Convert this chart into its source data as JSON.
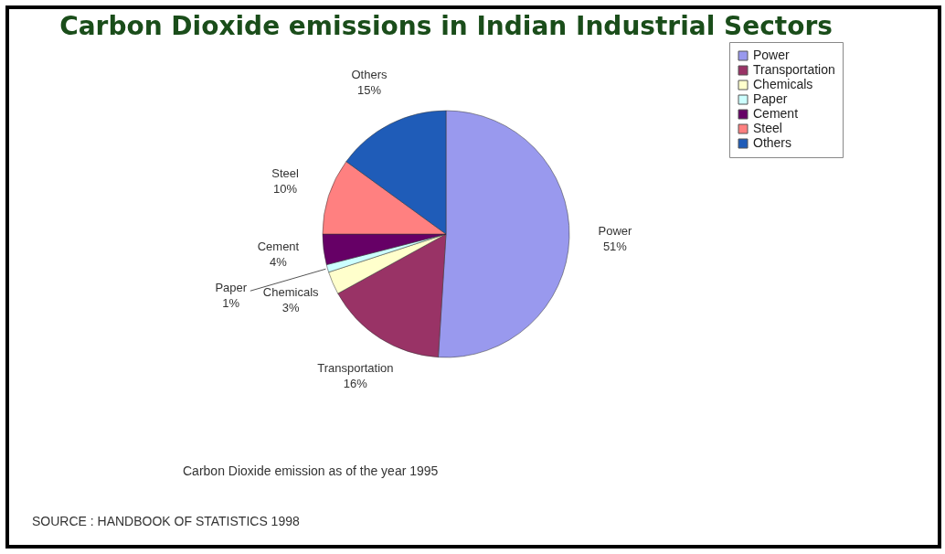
{
  "chart_data": {
    "type": "pie",
    "title": "Carbon Dioxide emissions in Indian Industrial Sectors",
    "categories": [
      "Power",
      "Transportation",
      "Chemicals",
      "Paper",
      "Cement",
      "Steel",
      "Others"
    ],
    "values": [
      51,
      16,
      3,
      1,
      4,
      10,
      15
    ],
    "value_labels": [
      "51%",
      "16%",
      "3%",
      "1%",
      "4%",
      "10%",
      "15%"
    ],
    "colors": [
      "#9999ee",
      "#993366",
      "#ffffcc",
      "#ccffff",
      "#660066",
      "#ff8080",
      "#1f5cb8"
    ],
    "legend": "right",
    "annotations": [
      "Carbon Dioxide emission as of the year 1995",
      "SOURCE : HANDBOOK OF STATISTICS 1998"
    ]
  }
}
